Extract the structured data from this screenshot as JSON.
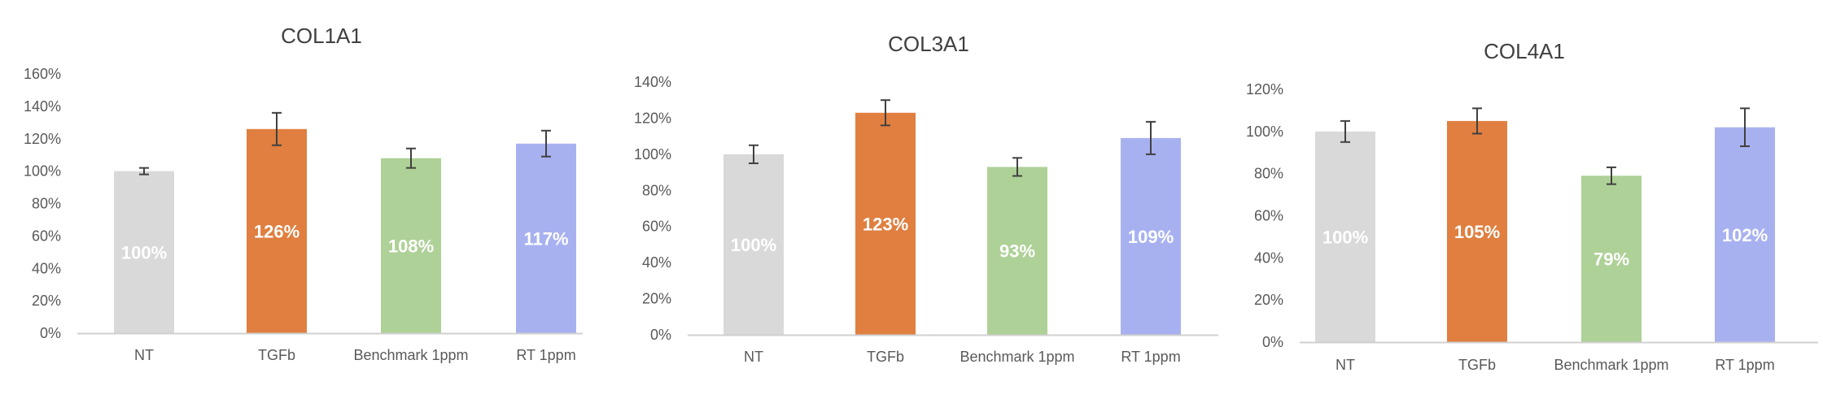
{
  "chart_data": [
    {
      "type": "bar",
      "title": "COL1A1",
      "categories": [
        "NT",
        "TGFb",
        "Benchmark 1ppm",
        "RT 1ppm"
      ],
      "values": [
        100,
        126,
        108,
        117
      ],
      "errors": [
        2,
        10,
        6,
        8
      ],
      "data_labels": [
        "100%",
        "126%",
        "108%",
        "117%"
      ],
      "colors": [
        "#d9d9d9",
        "#e07f40",
        "#aed197",
        "#a8b1f0"
      ],
      "ylim": [
        0,
        160
      ],
      "ytick_labels": [
        "0%",
        "20%",
        "40%",
        "60%",
        "80%",
        "100%",
        "120%",
        "140%",
        "160%"
      ],
      "grid": false
    },
    {
      "type": "bar",
      "title": "COL3A1",
      "categories": [
        "NT",
        "TGFb",
        "Benchmark 1ppm",
        "RT 1ppm"
      ],
      "values": [
        100,
        123,
        93,
        109
      ],
      "errors": [
        5,
        7,
        5,
        9
      ],
      "data_labels": [
        "100%",
        "123%",
        "93%",
        "109%"
      ],
      "colors": [
        "#d9d9d9",
        "#e07f40",
        "#aed197",
        "#a8b1f0"
      ],
      "ylim": [
        0,
        140
      ],
      "ytick_labels": [
        "0%",
        "20%",
        "40%",
        "60%",
        "80%",
        "100%",
        "120%",
        "140%"
      ],
      "grid": false
    },
    {
      "type": "bar",
      "title": "COL4A1",
      "categories": [
        "NT",
        "TGFb",
        "Benchmark 1ppm",
        "RT 1ppm"
      ],
      "values": [
        100,
        105,
        79,
        102
      ],
      "errors": [
        5,
        6,
        4,
        9
      ],
      "data_labels": [
        "100%",
        "105%",
        "79%",
        "102%"
      ],
      "colors": [
        "#d9d9d9",
        "#e07f40",
        "#aed197",
        "#a8b1f0"
      ],
      "ylim": [
        0,
        120
      ],
      "ytick_labels": [
        "0%",
        "20%",
        "40%",
        "60%",
        "80%",
        "100%",
        "120%"
      ],
      "grid": false
    }
  ]
}
